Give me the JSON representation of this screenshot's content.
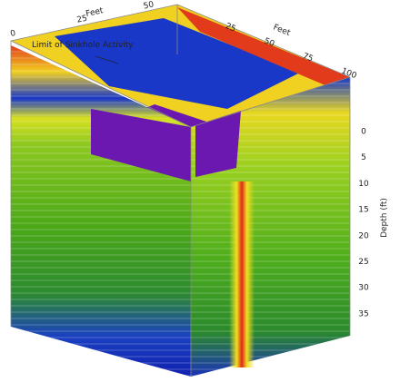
{
  "annotation": "Limit of Sinkhole Activity",
  "left_axis": {
    "title": "Feet",
    "ticks": [
      "0",
      "25",
      "50"
    ]
  },
  "right_axis": {
    "title": "Feet",
    "ticks": [
      "25",
      "50",
      "75",
      "100"
    ]
  },
  "depth_axis": {
    "title": "Depth (ft)",
    "ticks": [
      "0",
      "5",
      "10",
      "15",
      "20",
      "25",
      "30",
      "35"
    ]
  }
}
